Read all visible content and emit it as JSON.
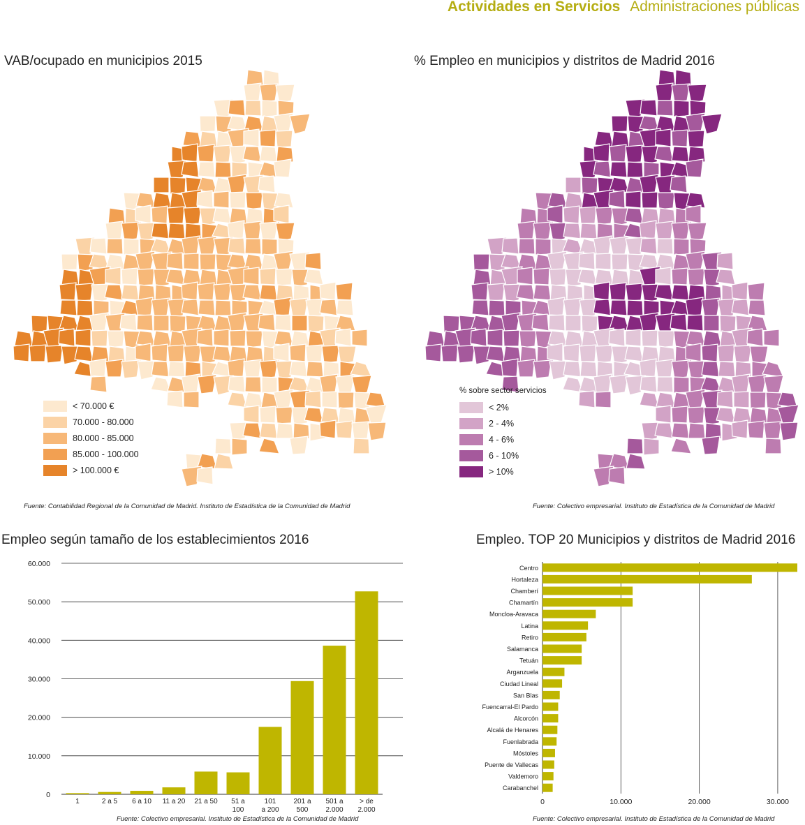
{
  "header": {
    "title": "Actividades en Servicios",
    "subtitle": "Administraciones públicas"
  },
  "colors": {
    "accent": "#b5ad12",
    "bar": "#bfb600"
  },
  "map_vab": {
    "title": "VAB/ocupado en municipios  2015",
    "legend": [
      {
        "label": "< 70.000 €",
        "color": "#fde9cf"
      },
      {
        "label": "70.000 - 80.000",
        "color": "#fbd3a6"
      },
      {
        "label": "80.000 - 85.000",
        "color": "#f7b878"
      },
      {
        "label": "85.000 - 100.000",
        "color": "#f2a052"
      },
      {
        "label": "> 100.000 €",
        "color": "#e6842a"
      }
    ],
    "source": "Fuente: Contabilidad Regional de la Comunidad de Madrid. Instituto de Estadística de la Comunidad de Madrid"
  },
  "map_empleo": {
    "title": "% Empleo en municipios y distritos de Madrid  2016",
    "legend_title": "% sobre sector servicios",
    "legend": [
      {
        "label": "< 2%",
        "color": "#e2c6d8"
      },
      {
        "label": "2 - 4%",
        "color": "#d2a3c6"
      },
      {
        "label": "4 - 6%",
        "color": "#bd7cb0"
      },
      {
        "label": "6 - 10%",
        "color": "#a5599c"
      },
      {
        "label": "> 10%",
        "color": "#86277f"
      }
    ],
    "source": "Fuente: Colectivo empresarial. Instituto de Estadística de la Comunidad de Madrid"
  },
  "chart_data": [
    {
      "type": "bar",
      "title": "Empleo según tamaño de los establecimientos  2016",
      "categories": [
        "1",
        "2 a 5",
        "6 a 10",
        "11 a 20",
        "21 a 50",
        "51 a 100",
        "101 a 200",
        "201 a 500",
        "501 a 2.000",
        "> de 2.000"
      ],
      "category_lines": [
        [
          "1"
        ],
        [
          "2 a 5"
        ],
        [
          "6 a 10"
        ],
        [
          "11 a 20"
        ],
        [
          "21 a 50"
        ],
        [
          "51 a",
          "100"
        ],
        [
          "101",
          "a 200"
        ],
        [
          "201 a",
          "500"
        ],
        [
          "501 a",
          "2.000"
        ],
        [
          "> de",
          "2.000"
        ]
      ],
      "values": [
        300,
        600,
        900,
        1800,
        5900,
        5700,
        17500,
        29400,
        38600,
        52700
      ],
      "ylim": [
        0,
        60000
      ],
      "yticks": [
        0,
        10000,
        20000,
        30000,
        40000,
        50000,
        60000
      ],
      "ytick_labels": [
        "0",
        "10.000",
        "20.000",
        "30.000",
        "40.000",
        "50.000",
        "60.000"
      ],
      "grid": true,
      "source": "Fuente: Colectivo empresarial. Instituto de Estadística de la Comunidad de Madrid"
    },
    {
      "type": "bar",
      "orientation": "horizontal",
      "title": "Empleo. TOP 20 Municipios y distritos de Madrid  2016",
      "categories": [
        "Centro",
        "Hortaleza",
        "Chamberí",
        "Chamartín",
        "Moncloa-Aravaca",
        "Latina",
        "Retiro",
        "Salamanca",
        "Tetuán",
        "Arganzuela",
        "Ciudad Lineal",
        "San Blas",
        "Fuencarral-El Pardo",
        "Alcorcón",
        "Alcalá de Henares",
        "Fuenlabrada",
        "Móstoles",
        "Puente de Vallecas",
        "Valdemoro",
        "Carabanchel"
      ],
      "values": [
        32500,
        26700,
        11500,
        11500,
        6800,
        5800,
        5600,
        5000,
        5000,
        2800,
        2500,
        2200,
        2000,
        2000,
        1900,
        1800,
        1600,
        1500,
        1400,
        1300
      ],
      "xlim": [
        0,
        32500
      ],
      "xticks": [
        0,
        10000,
        20000,
        30000
      ],
      "xtick_labels": [
        "0",
        "10.000",
        "20.000",
        "30.000"
      ],
      "grid": true,
      "source": "Fuente: Colectivo empresarial. Instituto de Estadística de la Comunidad de Madrid"
    }
  ]
}
